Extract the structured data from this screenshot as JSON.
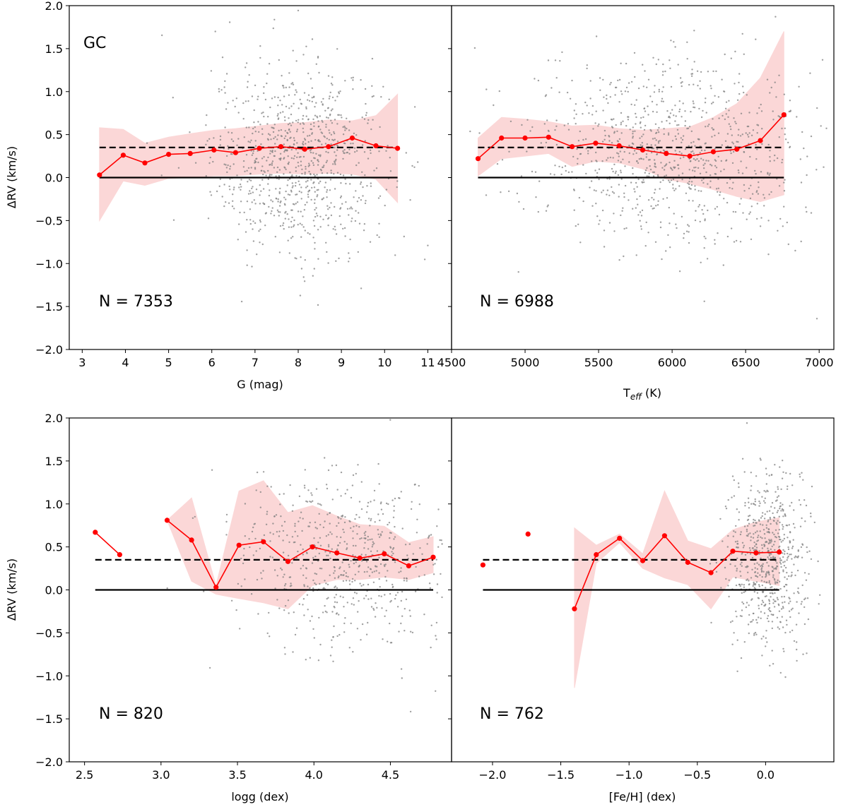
{
  "figure": {
    "y_tick_labels": [
      "2.0",
      "1.5",
      "1.0",
      "0.5",
      "0.0",
      "−0.5",
      "−1.0",
      "−1.5",
      "−2.0"
    ]
  },
  "chart_data": [
    {
      "type": "scatter",
      "panel": "top-left",
      "xlabel": "G (mag)",
      "ylabel": "ΔRV (km/s)",
      "xlim": [
        2.7,
        11.55
      ],
      "ylim": [
        -2.0,
        2.0
      ],
      "x_ticks": [
        3,
        4,
        5,
        6,
        7,
        8,
        9,
        10,
        11
      ],
      "x_tick_labels": [
        "3",
        "4",
        "5",
        "6",
        "7",
        "8",
        "9",
        "10",
        "11"
      ],
      "annotation_label": "GC",
      "count_label": "N = 7353",
      "reference_lines": {
        "zero": 0.0,
        "dashed": 0.35
      },
      "scatter_cloud": {
        "n": 900,
        "x_center": 8.0,
        "x_sd": 1.0,
        "x_min": 3.1,
        "x_max": 11.3,
        "y_center": 0.2,
        "y_sd": 0.55
      },
      "x": [
        3.4,
        3.95,
        4.45,
        5.0,
        5.5,
        6.05,
        6.55,
        7.1,
        7.6,
        8.15,
        8.7,
        9.25,
        9.8,
        10.3
      ],
      "y": [
        0.03,
        0.26,
        0.17,
        0.27,
        0.28,
        0.32,
        0.29,
        0.34,
        0.36,
        0.33,
        0.36,
        0.46,
        0.37,
        0.34
      ],
      "band_upper": [
        0.58,
        0.56,
        0.4,
        0.47,
        0.51,
        0.55,
        0.57,
        0.6,
        0.63,
        0.64,
        0.67,
        0.66,
        0.72,
        0.97
      ],
      "band_lower": [
        -0.5,
        -0.04,
        -0.09,
        -0.01,
        0.0,
        0.02,
        0.02,
        0.04,
        0.05,
        0.04,
        0.05,
        0.04,
        -0.02,
        -0.29
      ]
    },
    {
      "type": "scatter",
      "panel": "top-right",
      "xlabel": "T",
      "xlabel_sub": "eff",
      "xlabel_suffix": " (K)",
      "xlim": [
        4500,
        7100
      ],
      "ylim": [
        -2.0,
        2.0
      ],
      "x_ticks": [
        4500,
        5000,
        5500,
        6000,
        6500,
        7000
      ],
      "x_tick_labels": [
        "4500",
        "5000",
        "5500",
        "6000",
        "6500",
        "7000"
      ],
      "count_label": "N = 6988",
      "reference_lines": {
        "zero": 0.0,
        "dashed": 0.35
      },
      "scatter_cloud": {
        "n": 900,
        "x_center": 6000,
        "x_sd": 500,
        "x_min": 4550,
        "x_max": 7050,
        "y_center": 0.3,
        "y_sd": 0.55
      },
      "x": [
        4680,
        4840,
        5000,
        5160,
        5320,
        5480,
        5640,
        5800,
        5960,
        6120,
        6280,
        6440,
        6600,
        6760
      ],
      "y": [
        0.22,
        0.46,
        0.46,
        0.47,
        0.36,
        0.4,
        0.37,
        0.32,
        0.28,
        0.25,
        0.3,
        0.33,
        0.43,
        0.73
      ],
      "band_upper": [
        0.46,
        0.7,
        0.68,
        0.65,
        0.6,
        0.61,
        0.57,
        0.55,
        0.57,
        0.59,
        0.7,
        0.86,
        1.16,
        1.7
      ],
      "band_lower": [
        0.02,
        0.22,
        0.25,
        0.28,
        0.13,
        0.19,
        0.17,
        0.1,
        -0.02,
        -0.07,
        -0.14,
        -0.22,
        -0.28,
        -0.2
      ]
    },
    {
      "type": "scatter",
      "panel": "bottom-left",
      "xlabel": "logg (dex)",
      "ylabel": "ΔRV (km/s)",
      "xlim": [
        2.4,
        4.9
      ],
      "ylim": [
        -2.0,
        2.0
      ],
      "x_ticks": [
        2.5,
        3.0,
        3.5,
        4.0,
        4.5
      ],
      "x_tick_labels": [
        "2.5",
        "3.0",
        "3.5",
        "4.0",
        "4.5"
      ],
      "count_label": "N = 820",
      "reference_lines": {
        "zero": 0.0,
        "dashed": 0.35
      },
      "scatter_cloud": {
        "n": 600,
        "x_center": 4.2,
        "x_sd": 0.35,
        "x_min": 2.5,
        "x_max": 4.85,
        "y_center": 0.35,
        "y_sd": 0.5
      },
      "x": [
        2.57,
        2.73,
        3.04,
        3.2,
        3.36,
        3.51,
        3.67,
        3.83,
        3.99,
        4.15,
        4.3,
        4.46,
        4.62,
        4.78
      ],
      "y": [
        0.67,
        0.41,
        0.81,
        0.58,
        0.03,
        0.52,
        0.56,
        0.33,
        0.5,
        0.43,
        0.37,
        0.42,
        0.28,
        0.38
      ],
      "band_start_index": 2,
      "band_upper": [
        0.81,
        1.07,
        0.05,
        1.15,
        1.27,
        0.9,
        0.98,
        0.86,
        0.76,
        0.74,
        0.55,
        0.62
      ],
      "band_lower": [
        0.81,
        0.1,
        -0.05,
        -0.1,
        -0.15,
        -0.22,
        0.05,
        0.12,
        0.12,
        0.15,
        0.12,
        0.2
      ]
    },
    {
      "type": "scatter",
      "panel": "bottom-right",
      "xlabel": "[Fe/H] (dex)",
      "xlim": [
        -2.3,
        0.5
      ],
      "ylim": [
        -2.0,
        2.0
      ],
      "x_ticks": [
        -2.0,
        -1.5,
        -1.0,
        -0.5,
        0.0
      ],
      "x_tick_labels": [
        "−2.0",
        "−1.5",
        "−1.0",
        "−0.5",
        "0.0"
      ],
      "count_label": "N = 762",
      "reference_lines": {
        "zero": 0.0,
        "dashed": 0.35
      },
      "scatter_cloud": {
        "n": 650,
        "x_center": 0.0,
        "x_sd": 0.15,
        "x_min": -1.8,
        "x_max": 0.4,
        "y_center": 0.35,
        "y_sd": 0.5
      },
      "x": [
        -2.07,
        -1.74,
        -1.4,
        -1.24,
        -1.07,
        -0.9,
        -0.74,
        -0.57,
        -0.4,
        -0.24,
        -0.07,
        0.1
      ],
      "y": [
        0.29,
        0.65,
        -0.22,
        0.41,
        0.6,
        0.34,
        0.63,
        0.32,
        0.2,
        0.45,
        0.43,
        0.44
      ],
      "band_start_index": 2,
      "band_upper": [
        0.72,
        0.52,
        0.65,
        0.42,
        1.15,
        0.57,
        0.48,
        0.7,
        0.79,
        0.84
      ],
      "band_lower": [
        -1.14,
        0.31,
        0.55,
        0.25,
        0.14,
        0.06,
        -0.22,
        0.15,
        0.1,
        0.05
      ]
    }
  ]
}
